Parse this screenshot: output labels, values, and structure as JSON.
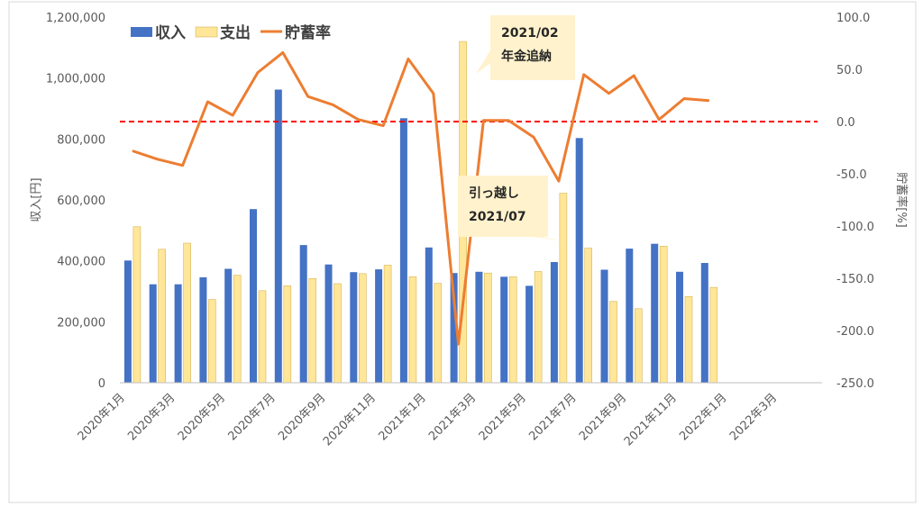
{
  "chart_data": {
    "type": "bar",
    "x_axis": {
      "categories": [
        "2020年1月",
        "2020年2月",
        "2020年3月",
        "2020年4月",
        "2020年5月",
        "2020年6月",
        "2020年7月",
        "2020年8月",
        "2020年9月",
        "2020年10月",
        "2020年11月",
        "2020年12月",
        "2021年1月",
        "2021年2月",
        "2021年3月",
        "2021年4月",
        "2021年5月",
        "2021年6月",
        "2021年7月",
        "2021年8月",
        "2021年9月",
        "2021年10月",
        "2021年11月",
        "2021年12月",
        "2022年1月",
        "2022年2月",
        "2022年3月",
        "2022年4月"
      ],
      "tick_labels": [
        "2020年1月",
        "2020年3月",
        "2020年5月",
        "2020年7月",
        "2020年9月",
        "2020年11月",
        "2021年1月",
        "2021年3月",
        "2021年5月",
        "2021年7月",
        "2021年9月",
        "2021年11月",
        "2022年1月",
        "2022年3月"
      ]
    },
    "y_axis_left": {
      "label": "収入[円]",
      "range": [
        0,
        1200000
      ],
      "tick_labels": [
        "0",
        "200,000",
        "400,000",
        "600,000",
        "800,000",
        "1,000,000",
        "1,200,000"
      ]
    },
    "y_axis_right": {
      "label": "貯蓄率[%]",
      "range": [
        -250,
        100
      ],
      "tick_labels": [
        "-250.0",
        "-200.0",
        "-150.0",
        "-100.0",
        "-50.0",
        "0.0",
        "50.0",
        "100.0"
      ]
    },
    "series": [
      {
        "name": "収入",
        "type": "bar",
        "axis": "left",
        "color": "#4472C4",
        "values": [
          401000,
          323000,
          323000,
          346000,
          374000,
          570000,
          962000,
          452000,
          388000,
          363000,
          372000,
          868000,
          444000,
          360000,
          364000,
          348000,
          318000,
          396000,
          803000,
          371000,
          440000,
          456000,
          364000,
          393000,
          null,
          null,
          null,
          null
        ]
      },
      {
        "name": "支出",
        "type": "bar",
        "axis": "left",
        "color": "#FFE699",
        "values": [
          512000,
          438000,
          458000,
          273000,
          353000,
          302000,
          318000,
          342000,
          325000,
          358000,
          386000,
          348000,
          326000,
          1120000,
          360000,
          348000,
          365000,
          622000,
          442000,
          267000,
          243000,
          448000,
          283000,
          313000,
          null,
          null,
          null,
          null
        ]
      },
      {
        "name": "貯蓄率",
        "type": "line",
        "axis": "right",
        "color": "#ED7D31",
        "values": [
          -28,
          -36,
          -42,
          19,
          6,
          47,
          66,
          24,
          16,
          2,
          -4,
          60,
          27,
          -213,
          1,
          1,
          -15,
          -57,
          45,
          27,
          44,
          2,
          22,
          20,
          null,
          null,
          null,
          null
        ]
      }
    ],
    "reference_line": {
      "value": 0,
      "axis": "right",
      "color": "#FF0000",
      "style": "dashed"
    },
    "annotations": [
      {
        "lines": [
          "2021/02",
          "年金追納"
        ]
      },
      {
        "lines": [
          "引っ越し",
          "2021/07"
        ]
      }
    ],
    "legend": "top-left",
    "grid": false
  }
}
